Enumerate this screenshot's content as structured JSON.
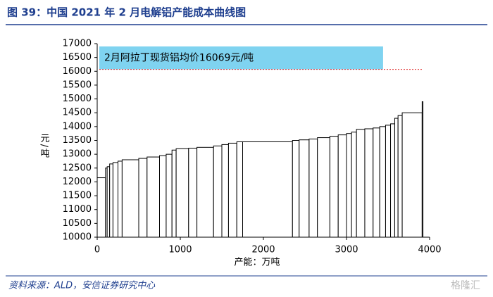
{
  "chart_data": {
    "type": "costcurve",
    "title": "图 39：中国 2021 年 2 月电解铝产能成本曲线图",
    "x_label": "产能：万吨",
    "y_label": "元/吨",
    "source": "资料来源：ALD，安信证券研究中心",
    "watermark": "格隆汇",
    "capacities": [
      100,
      20,
      30,
      40,
      60,
      50,
      200,
      100,
      150,
      80,
      70,
      50,
      150,
      100,
      200,
      100,
      80,
      100,
      70,
      600,
      80,
      120,
      100,
      150,
      100,
      100,
      60,
      60,
      100,
      100,
      80,
      70,
      60,
      50,
      40,
      50,
      240,
      10
    ],
    "values": [
      12150,
      12500,
      12550,
      12650,
      12700,
      12750,
      12800,
      12850,
      12900,
      12950,
      13000,
      13150,
      13200,
      13220,
      13250,
      13300,
      13350,
      13400,
      13450,
      13450,
      13500,
      13520,
      13550,
      13600,
      13650,
      13700,
      13750,
      13800,
      13900,
      13920,
      13950,
      14000,
      14050,
      14100,
      14300,
      14400,
      14500,
      14900
    ],
    "color": "#ffffff",
    "edge_color": "#000000",
    "xlim": [
      0,
      4000
    ],
    "xticks": [
      0,
      1000,
      2000,
      3000,
      4000
    ],
    "ylim": [
      10000,
      17000
    ],
    "yticks": [
      10000,
      10500,
      11000,
      11500,
      12000,
      12500,
      13000,
      13500,
      14000,
      14500,
      15000,
      15500,
      16000,
      16500,
      17000
    ],
    "price_line": {
      "value": 16069,
      "label": "2月阿拉丁现货铝均价16069元/吨",
      "color": "#e03030",
      "box_color": "#7fd3f0"
    }
  }
}
